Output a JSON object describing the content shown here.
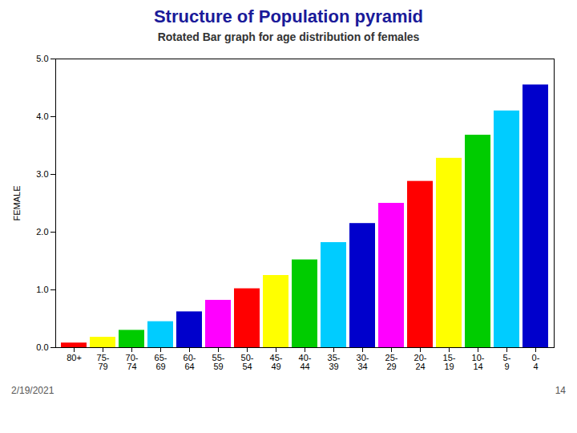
{
  "chart_data": {
    "type": "bar",
    "title": "Structure of Population pyramid",
    "subtitle": "Rotated Bar graph for age distribution of females",
    "annotations": [
      "2/19/2021",
      "14"
    ],
    "ylabel": "FEMALE",
    "categories": [
      "80+",
      "75-\n79",
      "70-\n74",
      "65-\n69",
      "60-\n64",
      "55-\n59",
      "50-\n54",
      "45-\n49",
      "40-\n44",
      "35-\n39",
      "30-\n34",
      "25-\n29",
      "20-\n24",
      "15-\n19",
      "10-\n14",
      "5-\n9",
      "0-\n4"
    ],
    "values": [
      0.08,
      0.18,
      0.3,
      0.45,
      0.62,
      0.82,
      1.02,
      1.25,
      1.52,
      1.82,
      2.15,
      2.5,
      2.88,
      3.28,
      3.68,
      4.1,
      4.55
    ],
    "colors": [
      "#ff0000",
      "#ffff00",
      "#00cc00",
      "#00ccff",
      "#0000cc",
      "#ff00ff",
      "#ff0000",
      "#ffff00",
      "#00cc00",
      "#00ccff",
      "#0000cc",
      "#ff00ff",
      "#ff0000",
      "#ffff00",
      "#00cc00",
      "#00ccff",
      "#0000cc"
    ],
    "ylim": [
      0,
      5
    ],
    "yticks": [
      0,
      1,
      2,
      3,
      4,
      5
    ],
    "grid": false
  }
}
